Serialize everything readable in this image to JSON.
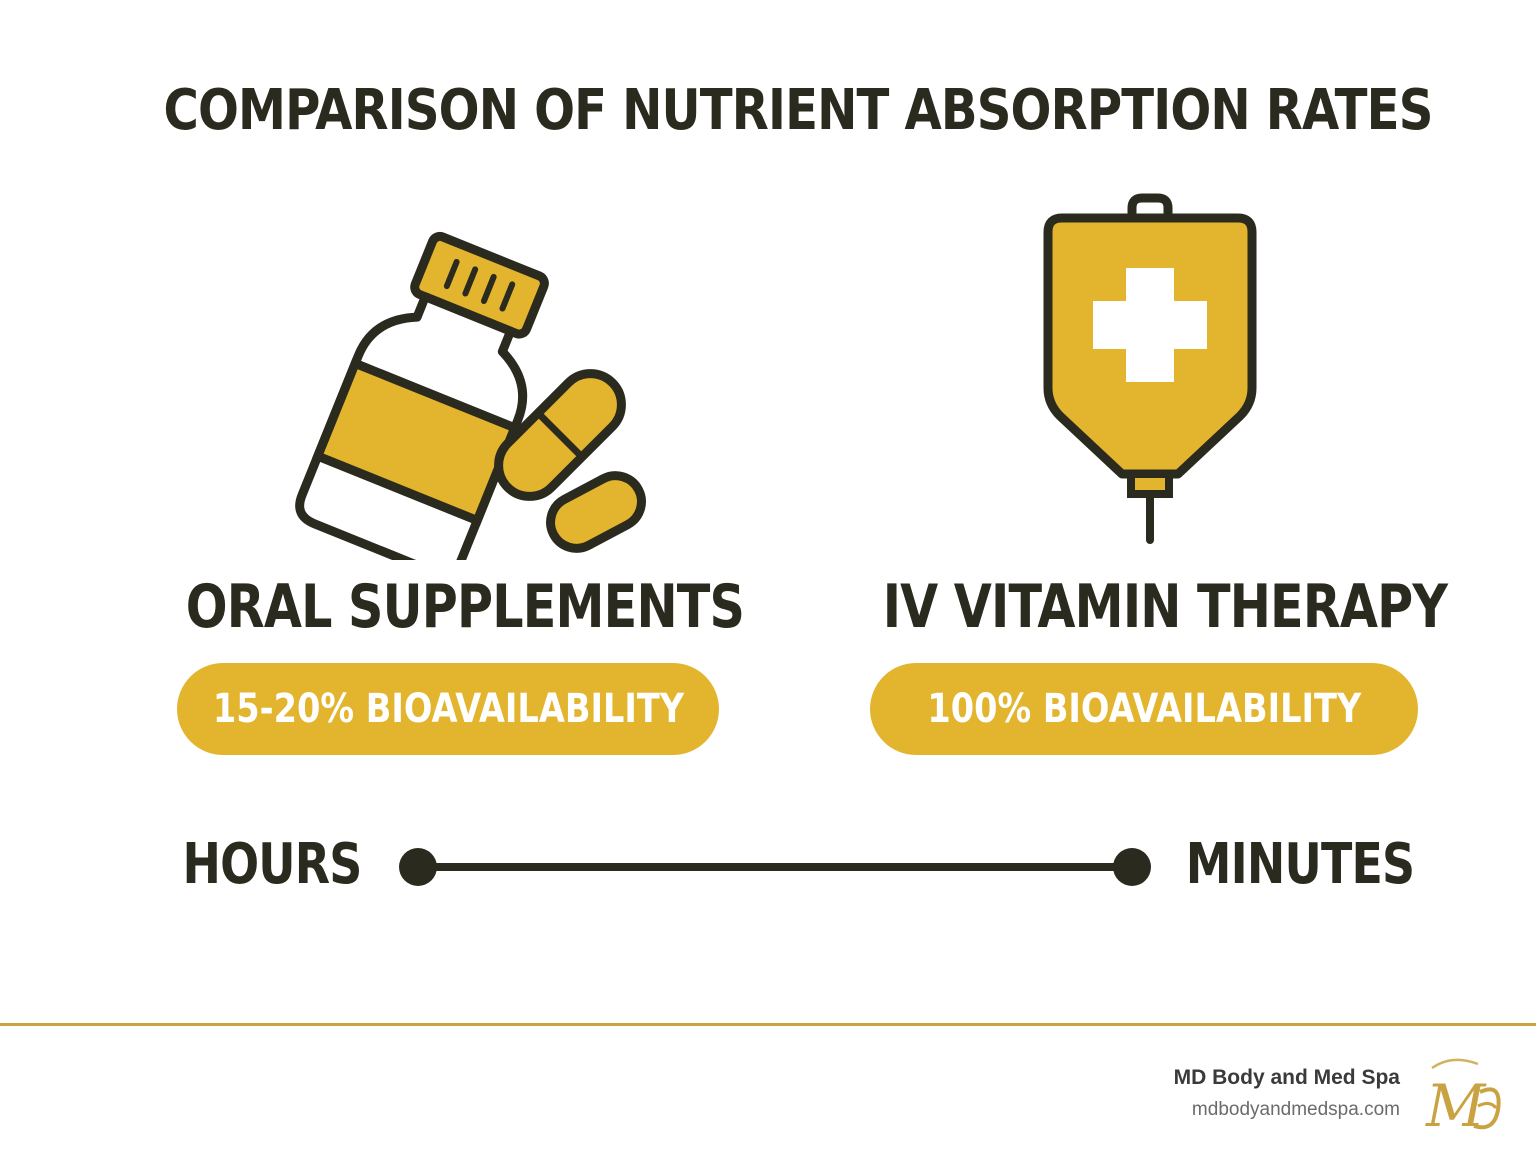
{
  "title": "COMPARISON OF NUTRIENT ABSORPTION RATES",
  "colors": {
    "accent": "#e3b42d",
    "ink": "#2b2a1f",
    "divider": "#c9a341"
  },
  "oral": {
    "icon": "supplement-bottle-pills-icon",
    "label": "ORAL SUPPLEMENTS",
    "bioavailability": "15-20% BIOAVAILABILITY"
  },
  "iv": {
    "icon": "iv-bag-medical-cross-icon",
    "label": "IV VITAMIN THERAPY",
    "bioavailability": "100% BIOAVAILABILITY"
  },
  "timeline": {
    "start_label": "HOURS",
    "end_label": "MINUTES"
  },
  "footer": {
    "brand": "MD Body and Med Spa",
    "url": "mdbodyandmedspa.com",
    "logo_text": "MB"
  }
}
